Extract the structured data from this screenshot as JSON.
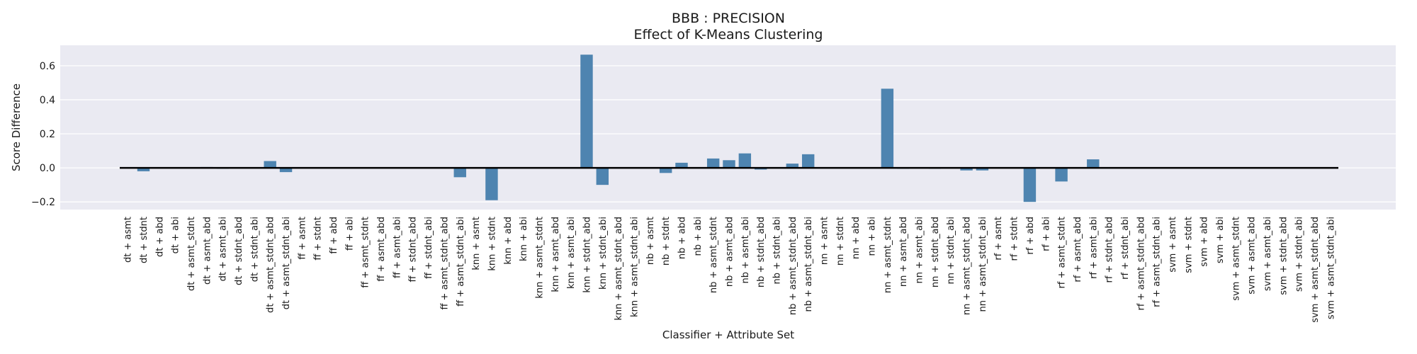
{
  "chart_data": {
    "type": "bar",
    "title": "BBB : PRECISION",
    "subtitle": "Effect of K-Means Clustering",
    "xlabel": "Classifier + Attribute Set",
    "ylabel": "Score Difference",
    "ylim": [
      -0.245,
      0.72
    ],
    "yticks": [
      -0.2,
      0.0,
      0.2,
      0.4,
      0.6
    ],
    "ytick_labels": [
      "−0.2",
      "0.0",
      "0.2",
      "0.4",
      "0.6"
    ],
    "grid": true,
    "legend": "none",
    "bar_color": "#4e84b0",
    "background_color": "#eaeaf2",
    "zero_line_color": "#000000",
    "categories": [
      "dt + asmt",
      "dt + stdnt",
      "dt + abd",
      "dt + abi",
      "dt + asmt_stdnt",
      "dt + asmt_abd",
      "dt + asmt_abi",
      "dt + stdnt_abd",
      "dt + stdnt_abi",
      "dt + asmt_stdnt_abd",
      "dt + asmt_stdnt_abi",
      "ff + asmt",
      "ff + stdnt",
      "ff + abd",
      "ff + abi",
      "ff + asmt_stdnt",
      "ff + asmt_abd",
      "ff + asmt_abi",
      "ff + stdnt_abd",
      "ff + stdnt_abi",
      "ff + asmt_stdnt_abd",
      "ff + asmt_stdnt_abi",
      "knn + asmt",
      "knn + stdnt",
      "knn + abd",
      "knn + abi",
      "knn + asmt_stdnt",
      "knn + asmt_abd",
      "knn + asmt_abi",
      "knn + stdnt_abd",
      "knn + stdnt_abi",
      "knn + asmt_stdnt_abd",
      "knn + asmt_stdnt_abi",
      "nb + asmt",
      "nb + stdnt",
      "nb + abd",
      "nb + abi",
      "nb + asmt_stdnt",
      "nb + asmt_abd",
      "nb + asmt_abi",
      "nb + stdnt_abd",
      "nb + stdnt_abi",
      "nb + asmt_stdnt_abd",
      "nb + asmt_stdnt_abi",
      "nn + asmt",
      "nn + stdnt",
      "nn + abd",
      "nn + abi",
      "nn + asmt_stdnt",
      "nn + asmt_abd",
      "nn + asmt_abi",
      "nn + stdnt_abd",
      "nn + stdnt_abi",
      "nn + asmt_stdnt_abd",
      "nn + asmt_stdnt_abi",
      "rf + asmt",
      "rf + stdnt",
      "rf + abd",
      "rf + abi",
      "rf + asmt_stdnt",
      "rf + asmt_abd",
      "rf + asmt_abi",
      "rf + stdnt_abd",
      "rf + stdnt_abi",
      "rf + asmt_stdnt_abd",
      "rf + asmt_stdnt_abi",
      "svm + asmt",
      "svm + stdnt",
      "svm + abd",
      "svm + abi",
      "svm + asmt_stdnt",
      "svm + asmt_abd",
      "svm + asmt_abi",
      "svm + stdnt_abd",
      "svm + stdnt_abi",
      "svm + asmt_stdnt_abd",
      "svm + asmt_stdnt_abi"
    ],
    "values": [
      0.0,
      -0.02,
      0.0,
      0.0,
      0.0,
      0.005,
      -0.005,
      0.0,
      0.0,
      0.04,
      -0.025,
      0.0,
      0.0,
      0.0,
      0.0,
      0.0,
      0.0,
      0.0,
      0.0,
      0.0,
      0.0,
      -0.055,
      0.0,
      -0.19,
      0.0,
      0.0,
      0.0,
      0.0,
      0.0,
      0.665,
      -0.1,
      0.0,
      0.0,
      0.0,
      -0.03,
      0.03,
      0.0,
      0.055,
      0.045,
      0.085,
      -0.01,
      0.0,
      0.025,
      0.08,
      0.0,
      0.0,
      0.0,
      0.0,
      0.465,
      -0.005,
      0.0,
      -0.005,
      0.0,
      -0.015,
      -0.015,
      0.0,
      0.0,
      -0.2,
      0.0,
      -0.08,
      0.0,
      0.05,
      0.0,
      0.0,
      0.0,
      0.0,
      0.0,
      0.0,
      0.0,
      0.0,
      0.0,
      0.0,
      0.0,
      0.0,
      0.0,
      0.0,
      0.0
    ]
  }
}
